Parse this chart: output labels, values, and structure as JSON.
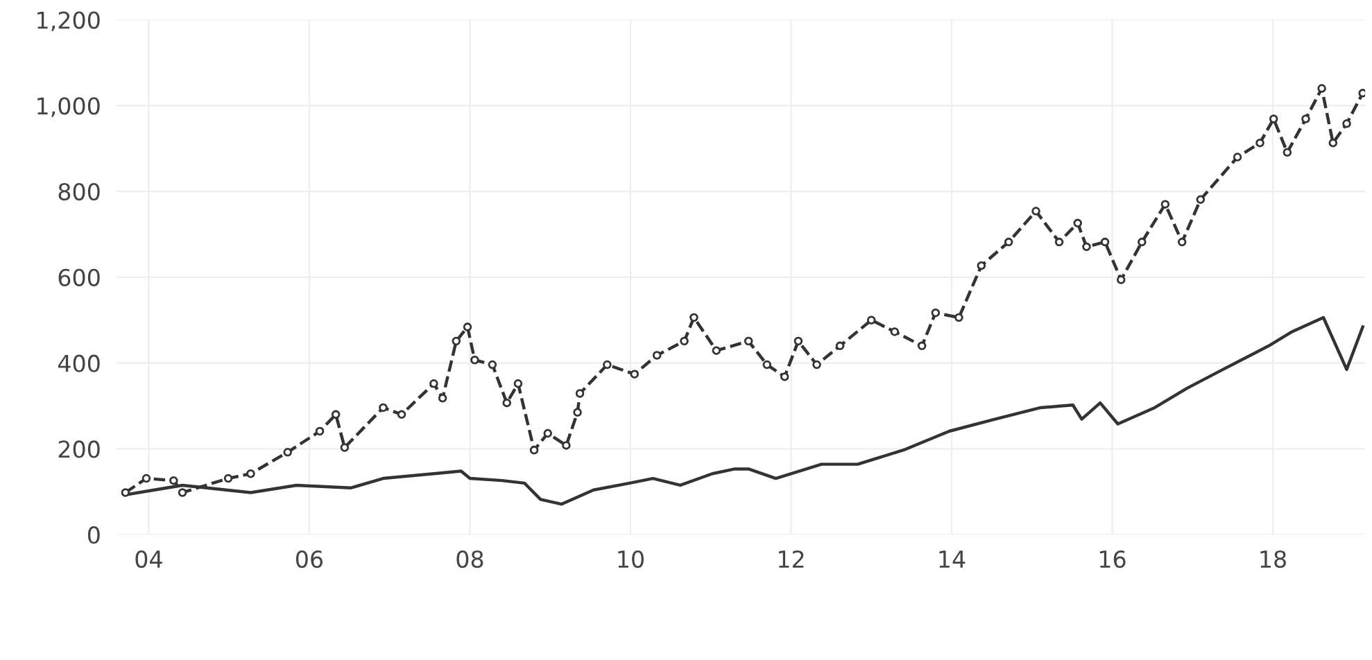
{
  "chart_data": {
    "type": "line",
    "xlim": [
      2003.6,
      2019.15
    ],
    "xticks": [
      {
        "value": 2004,
        "label": "04"
      },
      {
        "value": 2006,
        "label": "06"
      },
      {
        "value": 2008,
        "label": "08"
      },
      {
        "value": 2010,
        "label": "10"
      },
      {
        "value": 2012,
        "label": "12"
      },
      {
        "value": 2014,
        "label": "14"
      },
      {
        "value": 2016,
        "label": "16"
      },
      {
        "value": 2018,
        "label": "18"
      }
    ],
    "ylim": [
      0,
      1200
    ],
    "yticks": [
      {
        "value": 0,
        "label": "0"
      },
      {
        "value": 200,
        "label": "200"
      },
      {
        "value": 400,
        "label": "400"
      },
      {
        "value": 600,
        "label": "600"
      },
      {
        "value": 800,
        "label": "800"
      },
      {
        "value": 1000,
        "label": "1,000"
      },
      {
        "value": 1200,
        "label": "1,200"
      }
    ],
    "grid": true,
    "series": [
      {
        "color": "#333333",
        "line_style": "solid",
        "marker": "none",
        "x": [
          2003.71,
          2004.42,
          2005.27,
          2005.84,
          2006.52,
          2006.92,
          2007.55,
          2007.89,
          2008.0,
          2008.4,
          2008.68,
          2008.88,
          2009.14,
          2009.54,
          2009.99,
          2010.28,
          2010.62,
          2011.02,
          2011.3,
          2011.47,
          2011.81,
          2012.38,
          2012.83,
          2013.4,
          2013.97,
          2014.54,
          2015.11,
          2015.51,
          2015.62,
          2015.85,
          2016.07,
          2016.53,
          2016.93,
          2017.38,
          2017.95,
          2018.24,
          2018.63,
          2018.92,
          2019.12
        ],
        "values": [
          93,
          115,
          98,
          115,
          109,
          131,
          142,
          148,
          131,
          126,
          120,
          82,
          71,
          104,
          120,
          131,
          115,
          142,
          153,
          153,
          131,
          164,
          164,
          197,
          241,
          269,
          296,
          302,
          269,
          307,
          258,
          296,
          341,
          385,
          440,
          473,
          506,
          385,
          484
        ]
      },
      {
        "color": "#333333",
        "line_style": "dashed",
        "marker": "circle",
        "x": [
          2003.71,
          2003.97,
          2004.31,
          2004.42,
          2004.99,
          2005.27,
          2005.73,
          2006.13,
          2006.33,
          2006.44,
          2006.92,
          2007.15,
          2007.55,
          2007.66,
          2007.83,
          2007.97,
          2008.06,
          2008.28,
          2008.46,
          2008.6,
          2008.8,
          2008.97,
          2009.2,
          2009.34,
          2009.37,
          2009.71,
          2010.05,
          2010.33,
          2010.67,
          2010.79,
          2011.07,
          2011.47,
          2011.7,
          2011.92,
          2012.09,
          2012.32,
          2012.61,
          2013.0,
          2013.29,
          2013.63,
          2013.8,
          2014.09,
          2014.37,
          2014.71,
          2015.05,
          2015.34,
          2015.57,
          2015.68,
          2015.91,
          2016.11,
          2016.37,
          2016.66,
          2016.87,
          2017.1,
          2017.56,
          2017.84,
          2018.01,
          2018.18,
          2018.41,
          2018.61,
          2018.75,
          2018.92,
          2019.12
        ],
        "values": [
          98,
          131,
          126,
          98,
          131,
          142,
          192,
          241,
          280,
          203,
          296,
          280,
          352,
          318,
          451,
          484,
          407,
          396,
          307,
          352,
          197,
          236,
          208,
          285,
          329,
          396,
          374,
          418,
          451,
          506,
          429,
          451,
          396,
          368,
          451,
          396,
          440,
          500,
          473,
          440,
          517,
          506,
          627,
          682,
          754,
          682,
          726,
          671,
          682,
          594,
          682,
          770,
          682,
          781,
          880,
          913,
          969,
          891,
          969,
          1040,
          913,
          958,
          1029
        ]
      }
    ]
  }
}
